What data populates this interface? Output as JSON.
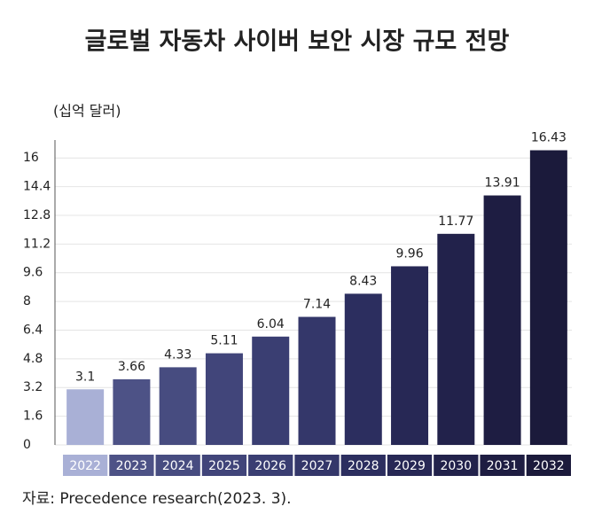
{
  "chart_data": {
    "type": "bar",
    "title": "글로벌 자동차 사이버 보안 시장 규모 전망",
    "y_label": "(십억 달러)",
    "source": "자료: Precedence research(2023. 3).",
    "categories": [
      "2022",
      "2023",
      "2024",
      "2025",
      "2026",
      "2027",
      "2028",
      "2029",
      "2030",
      "2031",
      "2032"
    ],
    "values": [
      3.1,
      3.66,
      4.33,
      5.11,
      6.04,
      7.14,
      8.43,
      9.96,
      11.77,
      13.91,
      16.43
    ],
    "colors": [
      "#a9b0d6",
      "#4d5286",
      "#474c80",
      "#41457a",
      "#3a3e72",
      "#34376a",
      "#2c2e5f",
      "#272855",
      "#22224b",
      "#1e1d42",
      "#1b1a3b"
    ],
    "ylim": [
      0,
      17
    ],
    "yticks": [
      0,
      1.6,
      3.2,
      4.8,
      6.4,
      8,
      9.6,
      11.2,
      12.8,
      14.4,
      16
    ],
    "grid": true
  }
}
